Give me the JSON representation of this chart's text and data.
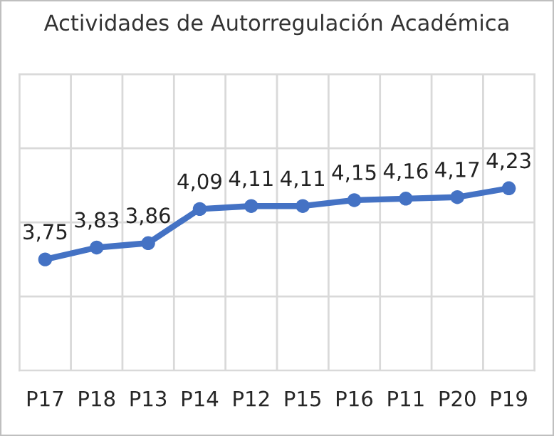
{
  "chart_data": {
    "type": "line",
    "title": "Actividades de Autorregulación Académica",
    "categories": [
      "P17",
      "P18",
      "P13",
      "P14",
      "P12",
      "P15",
      "P16",
      "P11",
      "P20",
      "P19"
    ],
    "series": [
      {
        "color": "#4472c4",
        "values": [
          3.75,
          3.83,
          3.86,
          4.09,
          4.11,
          4.11,
          4.15,
          4.16,
          4.17,
          4.23
        ],
        "value_labels": [
          "3,75",
          "3,83",
          "3,86",
          "4,09",
          "4,11",
          "4,11",
          "4,15",
          "4,16",
          "4,17",
          "4,23"
        ]
      }
    ],
    "ylim": [
      3,
      5
    ],
    "yticks": [
      {
        "value": 3,
        "label": null
      },
      {
        "value": 3.5,
        "label": null
      },
      {
        "value": 4,
        "label": null
      },
      {
        "value": 4.5,
        "label": null
      },
      {
        "value": 5,
        "label": null
      }
    ],
    "tick_labels": "x",
    "grid": true,
    "marker": "circle",
    "line_style": "solid",
    "legend": false
  }
}
